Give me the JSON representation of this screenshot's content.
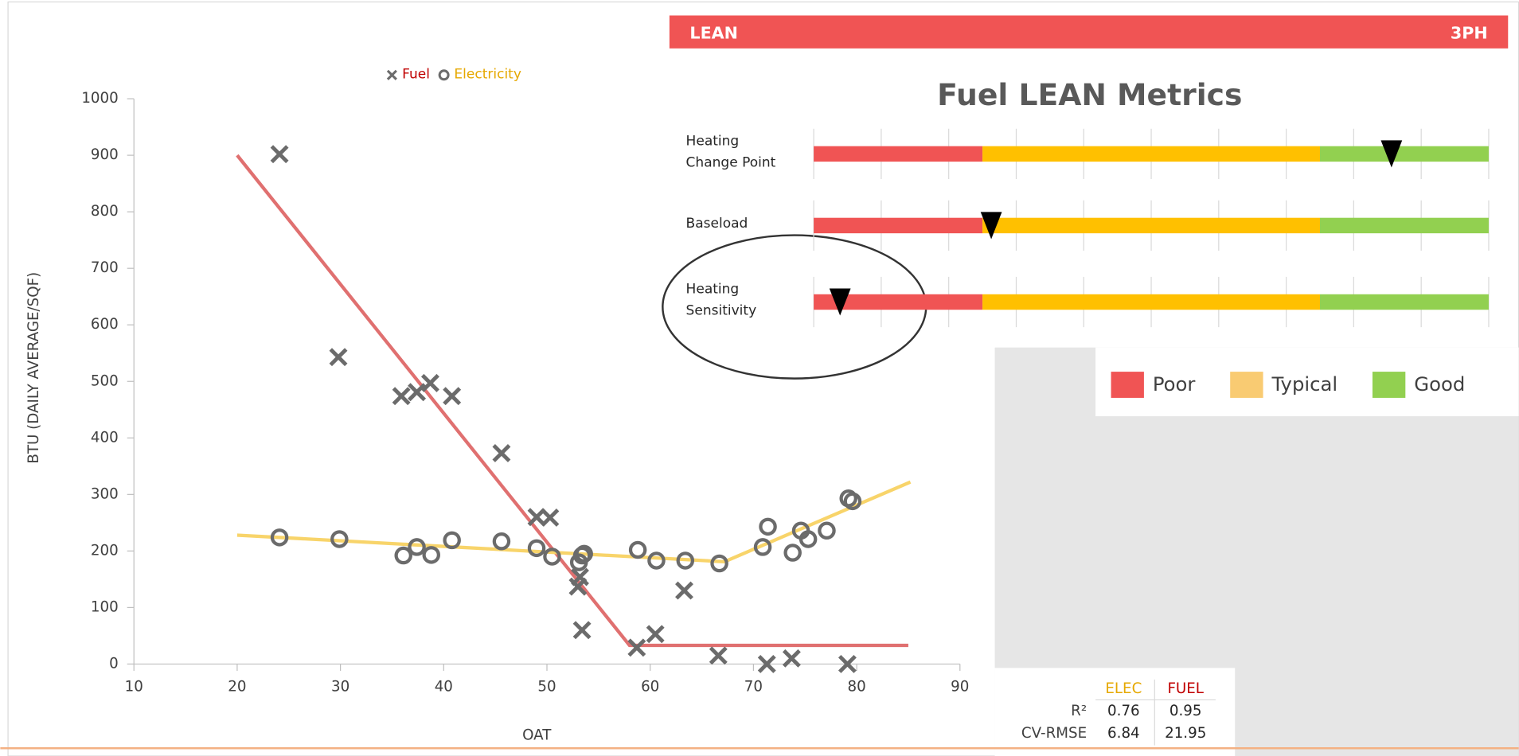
{
  "chart_data": {
    "type": "scatter",
    "x_label": "OAT",
    "y_label": "BTU (DAILY AVERAGE/SQF)",
    "xlim": [
      10,
      90
    ],
    "xticks": [
      10,
      20,
      30,
      40,
      50,
      60,
      70,
      80,
      90
    ],
    "ylim": [
      0,
      1000
    ],
    "yticks": [
      0,
      100,
      200,
      300,
      400,
      500,
      600,
      700,
      800,
      900,
      1000
    ],
    "series": [
      {
        "name": "Fuel",
        "marker": "x",
        "color": "#6b6b6b",
        "label_color": "#c00000",
        "x": [
          24.1,
          29.8,
          35.9,
          37.4,
          38.7,
          40.8,
          45.6,
          49.0,
          50.3,
          53.0,
          53.2,
          53.4,
          58.7,
          60.5,
          63.3,
          66.6,
          71.3,
          73.7,
          79.1
        ],
        "values": [
          902,
          543,
          474,
          481,
          497,
          474,
          373,
          260,
          259,
          137,
          154,
          60,
          29,
          53,
          130,
          15,
          0,
          10,
          0
        ]
      },
      {
        "name": "Electricity",
        "marker": "o",
        "color": "#6b6b6b",
        "label_color": "#e6a800",
        "x": [
          24.1,
          29.9,
          36.1,
          37.4,
          38.8,
          40.8,
          45.6,
          49.0,
          50.5,
          53.1,
          53.4,
          53.6,
          58.8,
          60.6,
          63.4,
          66.7,
          70.9,
          71.4,
          73.8,
          74.6,
          75.3,
          77.1,
          79.2,
          79.6
        ],
        "values": [
          224,
          221,
          192,
          207,
          193,
          219,
          217,
          205,
          190,
          180,
          192,
          195,
          202,
          183,
          183,
          178,
          207,
          243,
          197,
          236,
          221,
          236,
          293,
          288
        ]
      }
    ],
    "fits": [
      {
        "color": "#e07070",
        "x": [
          20,
          58,
          85
        ],
        "values": [
          900,
          33,
          33
        ]
      },
      {
        "color": "#f8d46a",
        "x": [
          20,
          67.2,
          85.2
        ],
        "values": [
          228,
          181,
          322
        ]
      }
    ]
  },
  "lean": {
    "header_left": "LEAN",
    "header_right": "3PH",
    "title": "Fuel LEAN Metrics",
    "zones": [
      {
        "name": "Poor",
        "color": "#f05454",
        "width": 25
      },
      {
        "name": "Typical",
        "color": "#ffc000",
        "legend_color": "#f9cb72",
        "width": 50
      },
      {
        "name": "Good",
        "color": "#92d050",
        "width": 25
      }
    ],
    "gauge_ticks": [
      0,
      10,
      20,
      30,
      40,
      50,
      60,
      70,
      80,
      90,
      100
    ],
    "metrics": [
      {
        "label": [
          "Heating",
          "Change Point"
        ],
        "marker": 85.6
      },
      {
        "label": [
          "Baseload"
        ],
        "marker": 26.3
      },
      {
        "label": [
          "Heating",
          "Sensitivity"
        ],
        "marker": 3.9
      }
    ]
  },
  "stats": {
    "columns": [
      "ELEC",
      "FUEL"
    ],
    "column_colors": [
      "#e6a800",
      "#c00000"
    ],
    "rows": [
      {
        "label": "R²",
        "values": [
          0.76,
          0.95
        ]
      },
      {
        "label": "CV-RMSE",
        "values": [
          6.84,
          21.95
        ]
      }
    ]
  }
}
